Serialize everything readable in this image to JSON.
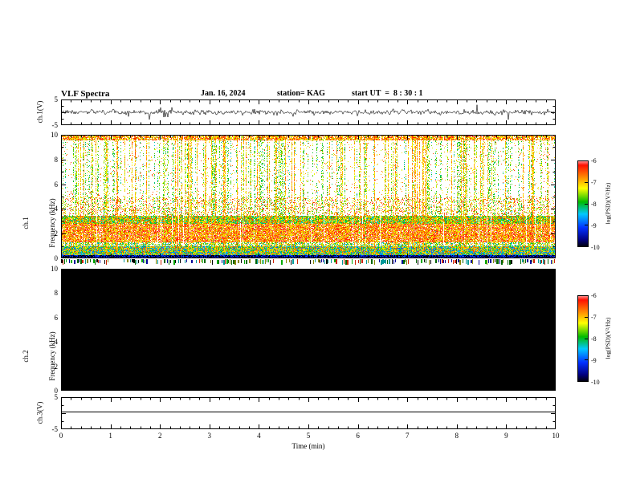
{
  "header": {
    "title": "VLF Spectra",
    "date": "Jan. 16, 2024",
    "station": "station= KAG",
    "start_ut": "start UT  =  8 : 30 : 1"
  },
  "panels": {
    "ch1_wave": {
      "label": "ch.1(V)"
    },
    "ch1_spec": {
      "label_line1": "ch.1",
      "label_line2": "Frequency (kHz)"
    },
    "ch2_spec": {
      "label_line1": "ch.2",
      "label_line2": "Frequency (kHz)"
    },
    "ch3_wave": {
      "label": "ch.3(V)"
    }
  },
  "xaxis": {
    "label": "Time (min)",
    "ticks": [
      "0",
      "1",
      "2",
      "3",
      "4",
      "5",
      "6",
      "7",
      "8",
      "9",
      "10"
    ]
  },
  "colormap": [
    {
      "v": 0.0,
      "c": "#000008"
    },
    {
      "v": 0.08,
      "c": "#000080"
    },
    {
      "v": 0.22,
      "c": "#0030ff"
    },
    {
      "v": 0.38,
      "c": "#00c8ff"
    },
    {
      "v": 0.52,
      "c": "#00bb00"
    },
    {
      "v": 0.68,
      "c": "#ffff00"
    },
    {
      "v": 0.84,
      "c": "#ff7000"
    },
    {
      "v": 0.95,
      "c": "#ff1000"
    },
    {
      "v": 1.0,
      "c": "#ff9999"
    }
  ],
  "chart_data": [
    {
      "id": "ch1_waveform",
      "type": "line",
      "ylabel": "ch.1(V)",
      "xlim": [
        0,
        10
      ],
      "ylim": [
        -5,
        5
      ],
      "yticks": [
        5,
        -5
      ],
      "line_color": "#000000",
      "description": "Continuous broadband noise trace centred on 0 V (about ±1 V) with frequent impulsive sferic spikes reaching roughly ±3 V over the full 10 minutes",
      "gen": {
        "seed": 1160124,
        "noise_amp": 0.4,
        "spike_prob": 0.05,
        "spike_amp": 2.5
      }
    },
    {
      "id": "ch1_spectrogram",
      "type": "heatmap",
      "ylabel": "ch.1 Frequency (kHz)",
      "xlabel": "Time (min)",
      "xlim": [
        0,
        10
      ],
      "ylim": [
        0,
        10
      ],
      "yticks": [
        10,
        8,
        6,
        4,
        2,
        0
      ],
      "colorbar": {
        "label": "log(PSD)(V²/Hz)",
        "ticks": [
          -6,
          -7,
          -8,
          -9,
          -10
        ],
        "range": [
          -10,
          -6
        ]
      },
      "description": "Dense broadband impulsive sferics: vertical red streaks spanning ~1-10 kHz throughout the 10 min; continuous intense red band 1.3-2.8 kHz; yellow/green/orange band 2.8-3.5 kHz; red speckle rain 3.5-5 kHz; sparse red impulses on white background 5-9.6 kHz; dense red band 9.6-10 kHz; mixed yellow/green/red band 0.3-1.0 kHz; dark blue/black band below 0.3 kHz; occasional white (quiet) vertical lanes; multicoloured tick-like baseline strip just below the 0 kHz axis",
      "gen": {
        "seed": 20240116,
        "white_below": -10.35,
        "streak_strong": 0.16,
        "streak_any": 0.42,
        "quiet_prob": 0.06,
        "bands": [
          {
            "f": [
              9.6,
              10
            ],
            "p": -6.8,
            "n": 0.7,
            "fill": 0.8
          },
          {
            "f": [
              5,
              9.6
            ],
            "p": -6.9,
            "n": 0.6,
            "fill": 0.035
          },
          {
            "f": [
              3.5,
              5
            ],
            "p": -7.0,
            "n": 0.9,
            "fill": 0.22
          },
          {
            "f": [
              2.8,
              3.5
            ],
            "p": -7.4,
            "n": 1.1,
            "fill": 0.97
          },
          {
            "f": [
              1.3,
              2.8
            ],
            "p": -6.7,
            "n": 0.8,
            "fill": 0.9
          },
          {
            "f": [
              1.0,
              1.3
            ],
            "p": -7.6,
            "n": 1.0,
            "fill": 0.55
          },
          {
            "f": [
              0.3,
              1.0
            ],
            "p": -7.7,
            "n": 1.3,
            "fill": 1.0
          },
          {
            "f": [
              0.0,
              0.3
            ],
            "p": -9.6,
            "n": 0.7,
            "fill": 1.0
          }
        ],
        "strip_colors": [
          "#000000",
          "#006600",
          "#cc2200",
          "#000099",
          "#888800",
          "#009999",
          "#00aa00"
        ]
      }
    },
    {
      "id": "ch2_spectrogram",
      "type": "heatmap",
      "ylabel": "ch.2 Frequency (kHz)",
      "xlim": [
        0,
        10
      ],
      "ylim": [
        0,
        10
      ],
      "yticks": [
        10,
        8,
        6,
        4,
        2,
        0
      ],
      "colorbar": {
        "label": "log(PSD)(V²/Hz)",
        "ticks": [
          -6,
          -7,
          -8,
          -9,
          -10
        ],
        "range": [
          -10,
          -6
        ]
      },
      "uniform_value": -10,
      "description": "Channel 2 has no signal: the entire panel sits at the minimum of the colour scale and renders as solid black"
    },
    {
      "id": "ch3_waveform",
      "type": "line",
      "ylabel": "ch.3(V)",
      "xlim": [
        0,
        10
      ],
      "ylim": [
        -5,
        5
      ],
      "yticks": [
        5,
        -5
      ],
      "line_color": "#000000",
      "flat_value": 0.5,
      "description": "Flat horizontal line at about +0.5 V across the full 10 minutes (no signal on channel 3)"
    }
  ]
}
